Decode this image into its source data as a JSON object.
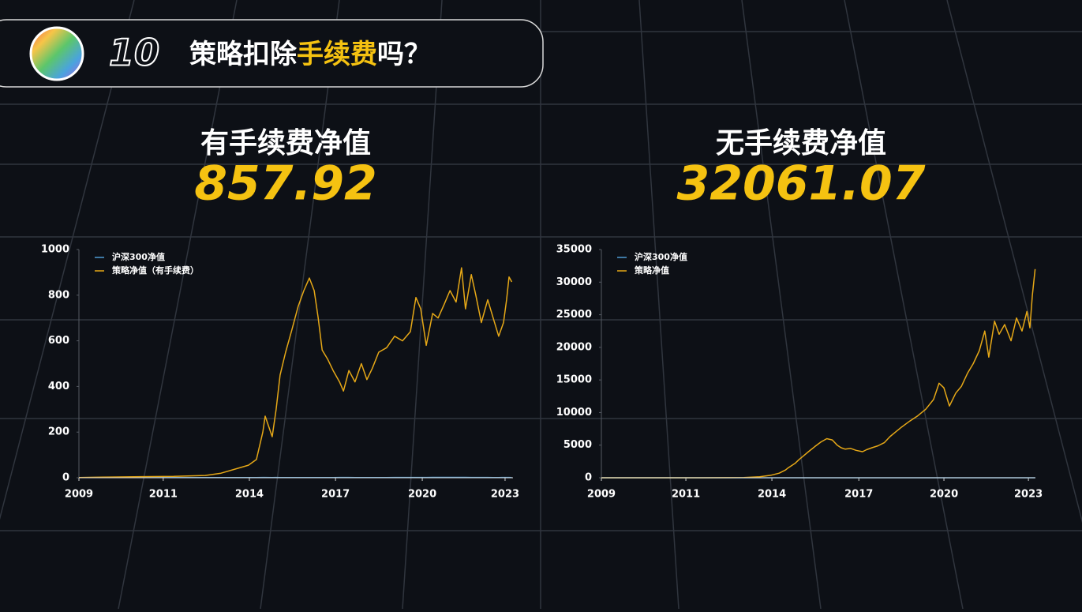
{
  "header": {
    "number": "10",
    "title": [
      "策略扣除",
      "手续费",
      "吗？"
    ]
  },
  "chart_data": [
    {
      "type": "line",
      "title": "有手续费净值",
      "final_value": 857.92,
      "x": [
        2009.0,
        2010.04,
        2011.07,
        2012.11,
        2013.15,
        2013.67,
        2014.19,
        2014.57,
        2014.83,
        2015.04,
        2015.12,
        2015.35,
        2015.48,
        2015.61,
        2015.79,
        2016.0,
        2016.2,
        2016.39,
        2016.57,
        2016.73,
        2016.86,
        2016.99,
        2017.17,
        2017.35,
        2017.56,
        2017.69,
        2017.87,
        2018.07,
        2018.28,
        2018.46,
        2018.64,
        2018.85,
        2019.11,
        2019.37,
        2019.63,
        2019.89,
        2020.07,
        2020.23,
        2020.41,
        2020.62,
        2020.8,
        2021.0,
        2021.19,
        2021.39,
        2021.57,
        2021.7,
        2021.89,
        2022.04,
        2022.22,
        2022.43,
        2022.61,
        2022.79,
        2022.95,
        2023.05,
        2023.13,
        2023.22
      ],
      "series": [
        {
          "name": "沪深300净值",
          "color": "#4f9bd4",
          "values": [
            1.0,
            1.3,
            1.1,
            0.9,
            0.8,
            0.8,
            0.7,
            0.8,
            0.9,
            1.4,
            1.5,
            1.2,
            1.3,
            1.2,
            1.1,
            1.0,
            1.0,
            1.0,
            1.0,
            1.1,
            1.1,
            1.1,
            1.1,
            1.2,
            1.3,
            1.3,
            1.4,
            1.2,
            1.1,
            1.0,
            1.1,
            1.2,
            1.2,
            1.3,
            1.3,
            1.4,
            1.3,
            1.4,
            1.5,
            1.6,
            1.6,
            1.7,
            1.8,
            1.7,
            1.6,
            1.6,
            1.5,
            1.4,
            1.3,
            1.3,
            1.2,
            1.2,
            1.3,
            1.3,
            1.3,
            1.2
          ]
        },
        {
          "name": "策略净值（有手续费）",
          "color": "#e6a817",
          "values": [
            1,
            3,
            5,
            6,
            10,
            20,
            40,
            55,
            80,
            200,
            270,
            180,
            300,
            450,
            550,
            650,
            750,
            820,
            875,
            820,
            700,
            560,
            520,
            470,
            420,
            380,
            470,
            420,
            500,
            430,
            480,
            550,
            570,
            620,
            600,
            640,
            790,
            740,
            580,
            720,
            700,
            760,
            820,
            770,
            920,
            740,
            890,
            800,
            680,
            780,
            700,
            620,
            680,
            780,
            880,
            858
          ]
        }
      ],
      "xlim": [
        2009,
        2023.26
      ],
      "xticks": [
        2009,
        {
          "value": 2011.77,
          "label": "2011"
        },
        {
          "value": 2014.6,
          "label": "2014"
        },
        {
          "value": 2017.43,
          "label": "2017"
        },
        {
          "value": 2020.28,
          "label": "2020"
        },
        2023
      ],
      "ylim": [
        0,
        1000
      ],
      "yticks": [
        0,
        200,
        400,
        600,
        800,
        1000
      ],
      "legend": "upper left",
      "grid": false
    },
    {
      "type": "line",
      "title": "无手续费净值",
      "final_value": 32061.07,
      "x": [
        2009.0,
        2010.04,
        2011.07,
        2012.11,
        2013.15,
        2013.67,
        2014.19,
        2014.57,
        2014.83,
        2015.04,
        2015.12,
        2015.35,
        2015.48,
        2015.61,
        2015.79,
        2016.0,
        2016.2,
        2016.39,
        2016.57,
        2016.73,
        2016.86,
        2016.99,
        2017.17,
        2017.35,
        2017.56,
        2017.69,
        2017.87,
        2018.07,
        2018.28,
        2018.46,
        2018.64,
        2018.85,
        2019.11,
        2019.37,
        2019.63,
        2019.89,
        2020.07,
        2020.23,
        2020.41,
        2020.62,
        2020.8,
        2021.0,
        2021.19,
        2021.39,
        2021.57,
        2021.7,
        2021.89,
        2022.04,
        2022.22,
        2022.43,
        2022.61,
        2022.79,
        2022.95,
        2023.05,
        2023.13,
        2023.22
      ],
      "series": [
        {
          "name": "沪深300净值",
          "color": "#4f9bd4",
          "values": [
            1.0,
            1.3,
            1.1,
            0.9,
            0.8,
            0.8,
            0.7,
            0.8,
            0.9,
            1.4,
            1.5,
            1.2,
            1.3,
            1.2,
            1.1,
            1.0,
            1.0,
            1.0,
            1.0,
            1.1,
            1.1,
            1.1,
            1.1,
            1.2,
            1.3,
            1.3,
            1.4,
            1.2,
            1.1,
            1.0,
            1.1,
            1.2,
            1.2,
            1.3,
            1.3,
            1.4,
            1.3,
            1.4,
            1.5,
            1.6,
            1.6,
            1.7,
            1.8,
            1.7,
            1.6,
            1.6,
            1.5,
            1.4,
            1.3,
            1.3,
            1.2,
            1.2,
            1.3,
            1.3,
            1.3,
            1.2
          ]
        },
        {
          "name": "策略净值",
          "color": "#e6a817",
          "values": [
            1,
            2,
            4,
            6,
            12,
            30,
            150,
            400,
            700,
            1200,
            1500,
            2200,
            2800,
            3300,
            4000,
            4800,
            5500,
            6000,
            5800,
            5000,
            4600,
            4400,
            4500,
            4200,
            4000,
            4300,
            4600,
            4900,
            5400,
            6300,
            7000,
            7800,
            8700,
            9500,
            10500,
            12000,
            14500,
            13800,
            11000,
            13000,
            14000,
            16000,
            17500,
            19500,
            22500,
            18500,
            24000,
            22000,
            23500,
            21000,
            24500,
            22500,
            25500,
            23000,
            28000,
            32000
          ]
        }
      ],
      "xlim": [
        2009,
        2023.23
      ],
      "xticks": [
        2009,
        {
          "value": 2011.77,
          "label": "2011"
        },
        {
          "value": 2014.59,
          "label": "2014"
        },
        {
          "value": 2017.44,
          "label": "2017"
        },
        {
          "value": 2020.23,
          "label": "2020"
        },
        2023
      ],
      "ylim": [
        0,
        35000
      ],
      "yticks": [
        0,
        5000,
        10000,
        15000,
        20000,
        25000,
        30000,
        35000
      ],
      "legend": "upper left",
      "grid": false
    }
  ]
}
